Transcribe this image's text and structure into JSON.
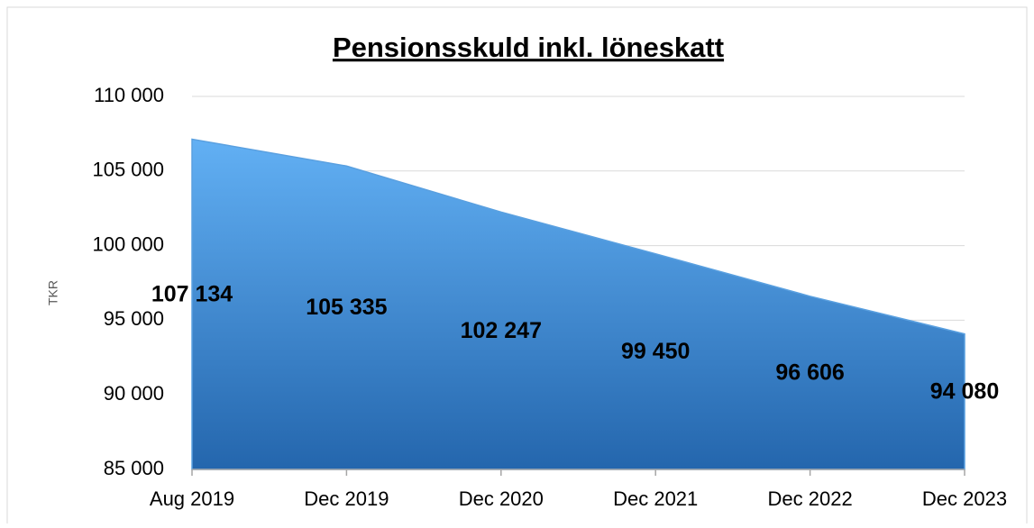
{
  "chart_data": {
    "type": "area",
    "title": "Pensionsskuld inkl. löneskatt",
    "y_label": "TKR",
    "categories": [
      "Aug 2019",
      "Dec 2019",
      "Dec 2020",
      "Dec 2021",
      "Dec 2022",
      "Dec 2023"
    ],
    "values": [
      107134,
      105335,
      102247,
      99450,
      96606,
      94080
    ],
    "value_labels": [
      "107 134",
      "105 335",
      "102 247",
      "99 450",
      "96 606",
      "94 080"
    ],
    "color": "#3d8ad8",
    "ylim": [
      85000,
      110000
    ],
    "yticks": [
      {
        "value": 85000,
        "label": "85 000"
      },
      {
        "value": 90000,
        "label": "90 000"
      },
      {
        "value": 95000,
        "label": "95 000"
      },
      {
        "value": 100000,
        "label": "100 000"
      },
      {
        "value": 105000,
        "label": "105 000"
      },
      {
        "value": 110000,
        "label": "110 000"
      }
    ],
    "grid": true
  }
}
